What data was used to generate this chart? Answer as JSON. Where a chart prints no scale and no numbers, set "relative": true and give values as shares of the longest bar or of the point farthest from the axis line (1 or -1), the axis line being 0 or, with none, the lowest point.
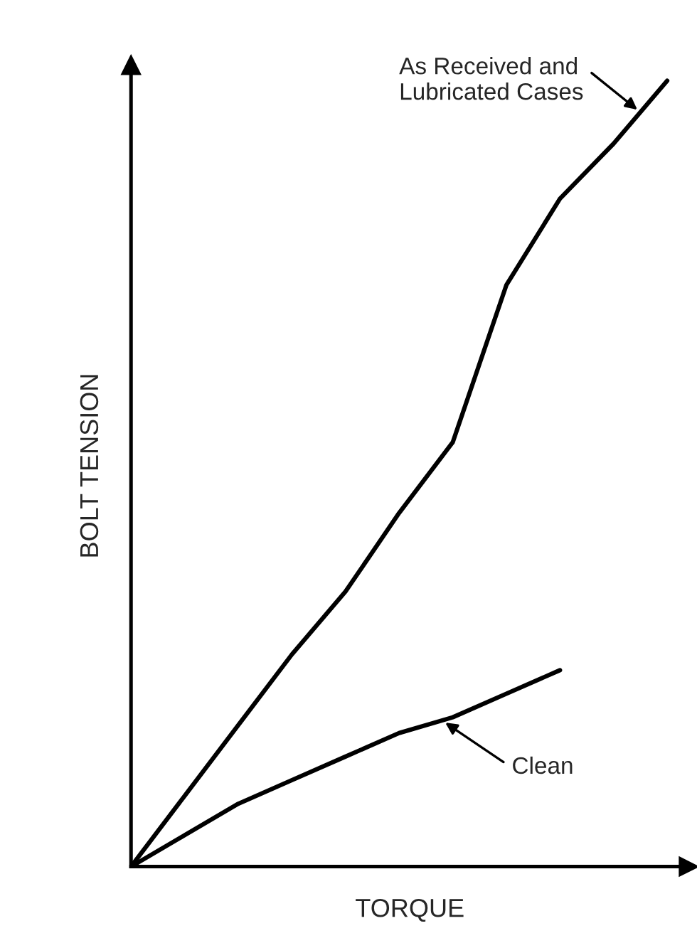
{
  "chart_data": {
    "type": "line",
    "relative": true,
    "xlabel": "TORQUE",
    "ylabel": "BOLT TENSION",
    "categories": [
      null,
      null,
      null,
      null,
      null,
      null,
      null,
      null,
      null,
      null,
      null
    ],
    "series": [
      {
        "color": "#000000",
        "values": [
          0,
          0.09,
          0.18,
          0.27,
          0.35,
          0.45,
          0.54,
          0.74,
          0.85,
          0.92,
          1
        ]
      },
      {
        "color": "#000000",
        "values": [
          0,
          0.04,
          0.08,
          0.11,
          0.14,
          0.17,
          0.19,
          0.22,
          0.25,
          null,
          null
        ]
      }
    ],
    "annotations": [
      "As Received and\nLubricated Cases",
      "Clean"
    ],
    "legend": false
  }
}
